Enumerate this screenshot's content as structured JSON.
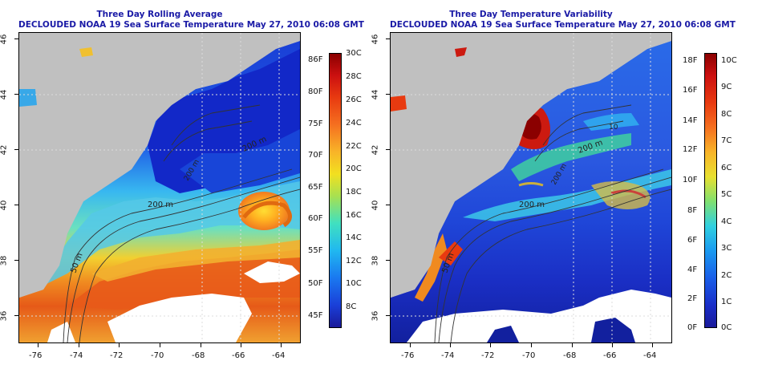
{
  "panels": [
    {
      "title_line1": "Three Day Rolling Average",
      "title_line2": "DECLOUDED NOAA 19 Sea Surface Temperature May 27, 2010 06:08 GMT",
      "colorbar_left_labels": [
        "86F",
        "80F",
        "75F",
        "70F",
        "65F",
        "60F",
        "55F",
        "50F",
        "45F"
      ],
      "colorbar_right_labels": [
        "30C",
        "28C",
        "26C",
        "24C",
        "22C",
        "20C",
        "18C",
        "16C",
        "14C",
        "12C",
        "10C",
        "8C"
      ],
      "contour_labels": [
        "200 m",
        "50 m",
        "200 m",
        "200 m"
      ]
    },
    {
      "title_line1": "Three Day Temperature Variability",
      "title_line2": "DECLOUDED NOAA 19 Sea Surface Temperature May 27, 2010 06:08 GMT",
      "colorbar_left_labels": [
        "18F",
        "16F",
        "14F",
        "12F",
        "10F",
        "8F",
        "6F",
        "4F",
        "2F",
        "0F"
      ],
      "colorbar_right_labels": [
        "10C",
        "9C",
        "8C",
        "7C",
        "6C",
        "5C",
        "4C",
        "3C",
        "2C",
        "1C",
        "0C"
      ],
      "contour_labels": [
        "200 m",
        "50 m",
        "200 m",
        "200 m",
        "10"
      ]
    }
  ],
  "lat_labels": [
    "46",
    "44",
    "42",
    "40",
    "38",
    "36"
  ],
  "lon_labels": [
    "-76",
    "-74",
    "-72",
    "-70",
    "-68",
    "-66",
    "-64"
  ],
  "colors": {
    "land": "#c0c0c0",
    "cloud": "#ffffff",
    "title": "#1a1aa6"
  }
}
